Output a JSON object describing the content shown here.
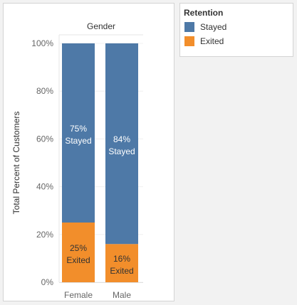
{
  "chart_data": {
    "type": "bar",
    "stacked": true,
    "normalized": true,
    "column_header": "Gender",
    "categories": [
      "Female",
      "Male"
    ],
    "ylabel": "Total Percent of Customers",
    "ylim": [
      0,
      100
    ],
    "yticks": [
      "0%",
      "20%",
      "40%",
      "60%",
      "80%",
      "100%"
    ],
    "series": [
      {
        "name": "Exited",
        "color": "#f28e2b",
        "values": [
          25,
          16
        ],
        "labels": [
          "25%\nExited",
          "16%\nExited"
        ]
      },
      {
        "name": "Stayed",
        "color": "#4e79a7",
        "values": [
          75,
          84
        ],
        "labels": [
          "75%\nStayed",
          "84%\nStayed"
        ]
      }
    ],
    "legend": {
      "title": "Retention",
      "position": "top-right",
      "items": [
        {
          "label": "Stayed",
          "color": "#4e79a7"
        },
        {
          "label": "Exited",
          "color": "#f28e2b"
        }
      ]
    }
  }
}
